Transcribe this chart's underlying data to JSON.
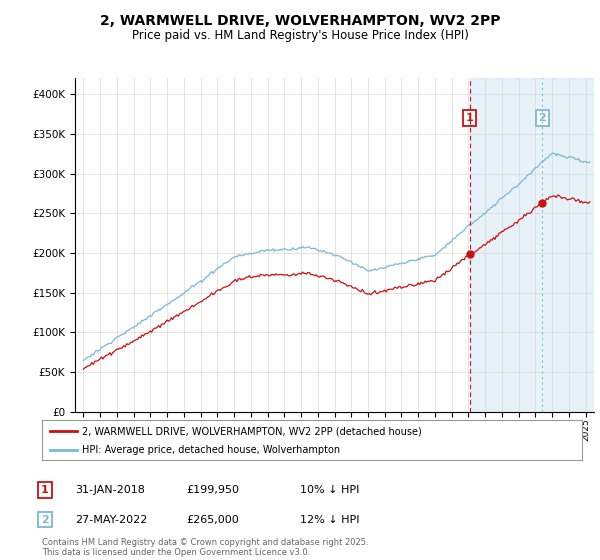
{
  "title": "2, WARMWELL DRIVE, WOLVERHAMPTON, WV2 2PP",
  "subtitle": "Price paid vs. HM Land Registry's House Price Index (HPI)",
  "hpi_color": "#7ab8d9",
  "price_color": "#cc1111",
  "vline1_color": "#cc1111",
  "vline2_color": "#7ab8d9",
  "vline1_x": 2018.08,
  "vline2_x": 2022.41,
  "marker1_label": "1",
  "marker2_label": "2",
  "sale1_date": "31-JAN-2018",
  "sale1_price": "£199,950",
  "sale1_hpi": "10% ↓ HPI",
  "sale2_date": "27-MAY-2022",
  "sale2_price": "£265,000",
  "sale2_hpi": "12% ↓ HPI",
  "legend_label1": "2, WARMWELL DRIVE, WOLVERHAMPTON, WV2 2PP (detached house)",
  "legend_label2": "HPI: Average price, detached house, Wolverhampton",
  "footer": "Contains HM Land Registry data © Crown copyright and database right 2025.\nThis data is licensed under the Open Government Licence v3.0.",
  "ylim": [
    0,
    420000
  ],
  "yticks": [
    0,
    50000,
    100000,
    150000,
    200000,
    250000,
    300000,
    350000,
    400000
  ],
  "xlim": [
    1994.5,
    2025.5
  ],
  "plot_bg": "#ffffff",
  "shade_color": "#d0e8f5"
}
